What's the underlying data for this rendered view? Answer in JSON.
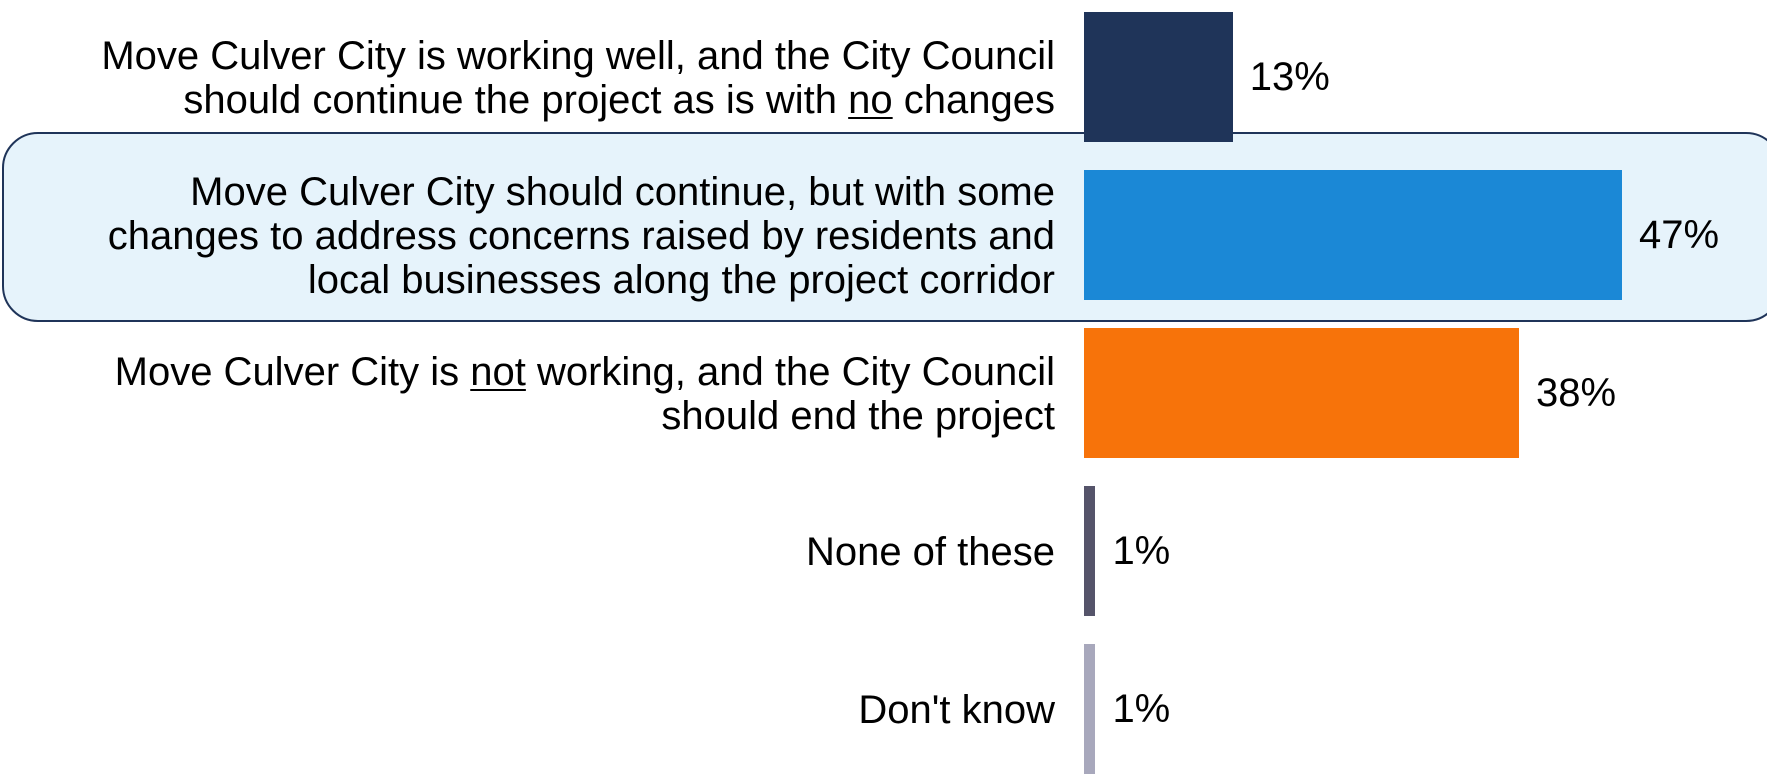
{
  "chart_data": {
    "type": "bar",
    "orientation": "horizontal",
    "highlighted_index": 1,
    "categories": [
      [
        [
          {
            "text": "Move Culver City is working well, and the City Council"
          }
        ],
        [
          {
            "text": "should continue the project as is with "
          },
          {
            "text": "no",
            "underline": true
          },
          {
            "text": " changes"
          }
        ]
      ],
      [
        [
          {
            "text": "Move Culver City should continue, but with some"
          }
        ],
        [
          {
            "text": "changes to address concerns raised by residents and"
          }
        ],
        [
          {
            "text": "local businesses along the project corridor"
          }
        ]
      ],
      [
        [
          {
            "text": "Move Culver City is "
          },
          {
            "text": "not",
            "underline": true
          },
          {
            "text": " working, and the City Council"
          }
        ],
        [
          {
            "text": "should end the project"
          }
        ]
      ],
      [
        [
          {
            "text": "None of these"
          }
        ]
      ],
      [
        [
          {
            "text": "Don't know"
          }
        ]
      ]
    ],
    "values": [
      13,
      47,
      38,
      1,
      1
    ],
    "value_labels": [
      "13%",
      "47%",
      "38%",
      "1%",
      "1%"
    ],
    "colors": [
      "#1f3459",
      "#1b88d6",
      "#f7730a",
      "#55546a",
      "#a8a8bc"
    ],
    "xlim": [
      0,
      50
    ]
  }
}
